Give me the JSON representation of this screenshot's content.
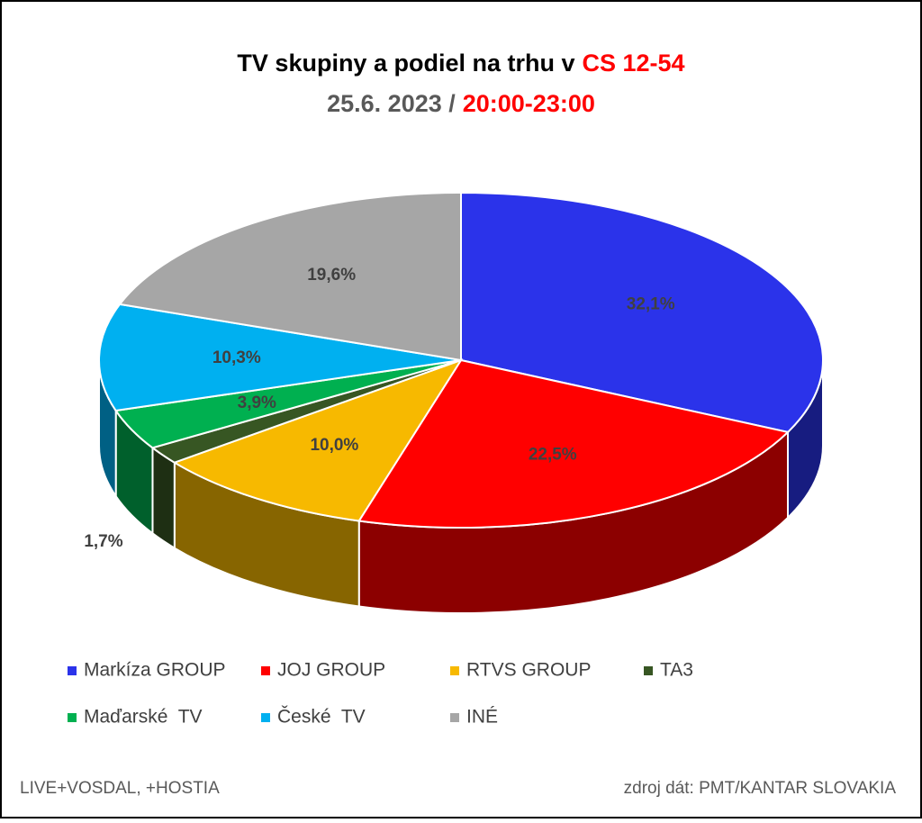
{
  "chart_data": {
    "type": "pie3d",
    "title": [
      "TV skupiny a podiel na trhu v",
      "CS 12-54"
    ],
    "subtitle": [
      "25.6. 2023 /",
      "20:00-23:00"
    ],
    "categories": [
      "Markíza GROUP",
      "JOJ GROUP",
      "RTVS GROUP",
      "TA3",
      "Maďarské  TV",
      "České  TV",
      "INÉ"
    ],
    "values": [
      32.1,
      22.5,
      10.0,
      1.7,
      3.9,
      10.3,
      19.6
    ],
    "value_labels": [
      "32,1%",
      "22,5%",
      "10,0%",
      "1,7%",
      "3,9%",
      "10,3%",
      "19,6%"
    ],
    "colors": [
      "#2b33ea",
      "#ff0000",
      "#f7b900",
      "#375623",
      "#00b050",
      "#00b0f0",
      "#a6a6a6"
    ],
    "notes": [
      "LIVE+VOSDAL, +HOSTIA",
      "zdroj dát: PMT/KANTAR SLOVAKIA"
    ]
  }
}
